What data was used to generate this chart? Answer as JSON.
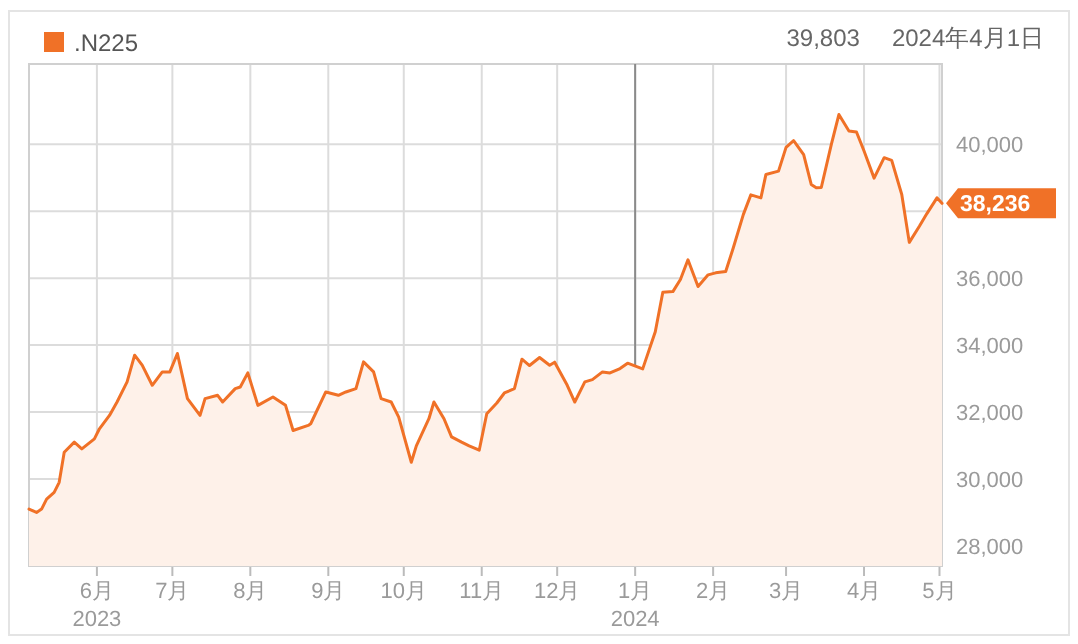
{
  "chart_data": {
    "type": "area",
    "legend": "top left",
    "grid": true,
    "xlim": [
      "2023-05-05",
      "2024-05-02"
    ],
    "ylim": [
      27400,
      42400
    ],
    "xticks": [
      {
        "value": "2023-06-01",
        "label": "6月\n2023"
      },
      {
        "value": "2023-07-01",
        "label": "7月"
      },
      {
        "value": "2023-08-01",
        "label": "8月"
      },
      {
        "value": "2023-09-01",
        "label": "9月"
      },
      {
        "value": "2023-10-01",
        "label": "10月"
      },
      {
        "value": "2023-11-01",
        "label": "11月"
      },
      {
        "value": "2023-12-01",
        "label": "12月"
      },
      {
        "value": "2024-01-01",
        "label": "1月\n2024"
      },
      {
        "value": "2024-02-01",
        "label": "2月"
      },
      {
        "value": "2024-03-01",
        "label": "3月"
      },
      {
        "value": "2024-04-01",
        "label": "4月"
      },
      {
        "value": "2024-05-01",
        "label": "5月"
      }
    ],
    "yticks": [
      {
        "value": 28000,
        "label": "28,000"
      },
      {
        "value": 30000,
        "label": "30,000"
      },
      {
        "value": 32000,
        "label": "32,000"
      },
      {
        "value": 34000,
        "label": "34,000"
      },
      {
        "value": 36000,
        "label": "36,000"
      },
      {
        "value": 38000,
        "label": null
      },
      {
        "value": 40000,
        "label": "40,000"
      }
    ],
    "ref_lines": [
      {
        "axis": "x",
        "value": "2024-01-01",
        "color": "#8a8a8a"
      }
    ],
    "annotations": [
      "39,803",
      "2024年4月1日",
      {
        "text": "38,236",
        "x": "2024-05-02",
        "y": 38236
      }
    ],
    "series": [
      {
        "name": ".N225",
        "color": "#f07127",
        "x": [
          "2023-05-05",
          "2023-05-08",
          "2023-05-10",
          "2023-05-12",
          "2023-05-15",
          "2023-05-17",
          "2023-05-19",
          "2023-05-23",
          "2023-05-26",
          "2023-05-31",
          "2023-06-02",
          "2023-06-06",
          "2023-06-09",
          "2023-06-13",
          "2023-06-16",
          "2023-06-19",
          "2023-06-23",
          "2023-06-27",
          "2023-06-30",
          "2023-07-03",
          "2023-07-07",
          "2023-07-12",
          "2023-07-14",
          "2023-07-19",
          "2023-07-21",
          "2023-07-26",
          "2023-07-28",
          "2023-07-31",
          "2023-08-04",
          "2023-08-10",
          "2023-08-15",
          "2023-08-18",
          "2023-08-24",
          "2023-08-25",
          "2023-08-31",
          "2023-09-05",
          "2023-09-08",
          "2023-09-12",
          "2023-09-15",
          "2023-09-19",
          "2023-09-22",
          "2023-09-26",
          "2023-09-29",
          "2023-10-04",
          "2023-10-06",
          "2023-10-11",
          "2023-10-13",
          "2023-10-17",
          "2023-10-20",
          "2023-10-24",
          "2023-10-27",
          "2023-10-31",
          "2023-11-03",
          "2023-11-07",
          "2023-11-10",
          "2023-11-14",
          "2023-11-17",
          "2023-11-20",
          "2023-11-24",
          "2023-11-28",
          "2023-11-30",
          "2023-12-05",
          "2023-12-08",
          "2023-12-12",
          "2023-12-15",
          "2023-12-19",
          "2023-12-22",
          "2023-12-26",
          "2023-12-29",
          "2024-01-04",
          "2024-01-09",
          "2024-01-12",
          "2024-01-16",
          "2024-01-19",
          "2024-01-22",
          "2024-01-26",
          "2024-01-30",
          "2024-02-02",
          "2024-02-06",
          "2024-02-09",
          "2024-02-13",
          "2024-02-16",
          "2024-02-20",
          "2024-02-22",
          "2024-02-27",
          "2024-03-01",
          "2024-03-04",
          "2024-03-08",
          "2024-03-11",
          "2024-03-13",
          "2024-03-15",
          "2024-03-19",
          "2024-03-22",
          "2024-03-26",
          "2024-03-29",
          "2024-04-01",
          "2024-04-05",
          "2024-04-09",
          "2024-04-12",
          "2024-04-16",
          "2024-04-19",
          "2024-04-23",
          "2024-04-26",
          "2024-04-30",
          "2024-05-02"
        ],
        "values": [
          29100,
          29000,
          29100,
          29400,
          29600,
          29900,
          30800,
          31100,
          30900,
          31200,
          31500,
          31900,
          32300,
          32900,
          33700,
          33400,
          32800,
          33200,
          33200,
          33750,
          32400,
          31900,
          32400,
          32500,
          32300,
          32700,
          32750,
          33170,
          32200,
          32450,
          32200,
          31450,
          31600,
          31650,
          32600,
          32500,
          32600,
          32700,
          33500,
          33200,
          32400,
          32300,
          31850,
          30500,
          30990,
          31800,
          32300,
          31800,
          31260,
          31100,
          30990,
          30860,
          31950,
          32270,
          32570,
          32700,
          33580,
          33390,
          33630,
          33400,
          33490,
          32800,
          32300,
          32900,
          32970,
          33200,
          33170,
          33300,
          33460,
          33290,
          34400,
          35580,
          35600,
          35960,
          36550,
          35750,
          36100,
          36160,
          36200,
          36900,
          37900,
          38490,
          38400,
          39100,
          39200,
          39910,
          40110,
          39690,
          38800,
          38700,
          38710,
          40000,
          40890,
          40400,
          40370,
          39800,
          38990,
          39600,
          39520,
          38500,
          37070,
          37550,
          37930,
          38400,
          38236
        ]
      }
    ]
  }
}
